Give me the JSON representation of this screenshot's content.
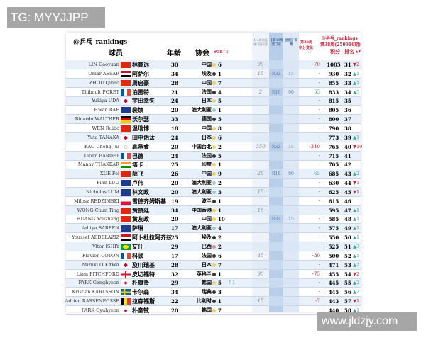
{
  "watermarks": {
    "top_left": "TG: MYYJJPP",
    "bottom_right": "www.jldzjy.com"
  },
  "header": {
    "brand": "@乒乓_rankings",
    "player": "球员",
    "age": "年龄",
    "assoc": "协会",
    "num": "#38↑↓",
    "col1": "【18周次回】澳门冠军赛",
    "col2": "【第38周 澳门冠",
    "col3": "战报】军赛",
    "col4_a": "第38周",
    "col4_b": "积分变化",
    "col4_c": "+/-",
    "right_brand": "@乒乓_rankings",
    "right_period": "第38周(250916期)",
    "points": "积分",
    "rank": "排名",
    "rank_arrows": "▲▼"
  },
  "colors": {
    "up": "#3aa58a",
    "down": "#c0283c",
    "band": "#b9cfe9"
  },
  "rows": [
    {
      "en": "LIN Gaoyuan",
      "flag": "cn",
      "cn": "林高远",
      "age": "30",
      "assoc": "中国",
      "dot": "#f0d060",
      "num": "6",
      "trend": "",
      "c1": "90",
      "c2": "",
      "c3": "",
      "change": "-70",
      "points": "1005",
      "rank": "31",
      "move": "▼2",
      "dir": "down"
    },
    {
      "en": "Omar ASSAR",
      "flag": "eg",
      "cn": "阿萨尔",
      "age": "34",
      "assoc": "埃及",
      "dot": "#333",
      "num": "1",
      "trend": "",
      "c1": "15",
      "c2": "R32",
      "c3": "15",
      "change": "-",
      "points": "930",
      "rank": "32",
      "move": "▲1",
      "dir": "up"
    },
    {
      "en": "ZHOU Qihao",
      "flag": "cn",
      "cn": "周启豪",
      "age": "28",
      "assoc": "中国",
      "dot": "#f0d060",
      "num": "7",
      "trend": "",
      "c1": "",
      "c2": "",
      "c3": "",
      "change": "-",
      "points": "855",
      "rank": "33",
      "move": "▲1",
      "dir": "up"
    },
    {
      "en": "Thibault PORET",
      "flag": "fr",
      "cn": "泊雷特",
      "age": "21",
      "assoc": "法国",
      "dot": "#333",
      "num": "4",
      "trend": "",
      "c1": "2",
      "c2": "R16",
      "c3": "90",
      "change": "55",
      "points": "833",
      "rank": "34",
      "move": "▲5",
      "dir": "up"
    },
    {
      "en": "Yukiya UDA",
      "flag": "jp",
      "cn": "宇田幸矢",
      "age": "24",
      "assoc": "日本",
      "dot": "#f0d060",
      "num": "5",
      "trend": "",
      "c1": "",
      "c2": "",
      "c3": "",
      "change": "-",
      "points": "815",
      "rank": "35",
      "move": "",
      "dir": ""
    },
    {
      "en": "Hwan BAE",
      "flag": "au",
      "cn": "裴焕",
      "age": "20",
      "assoc": "澳大利亚",
      "dot": "#9cc8d8",
      "num": "1",
      "trend": "",
      "c1": "",
      "c2": "",
      "c3": "",
      "change": "-",
      "points": "805",
      "rank": "36",
      "move": "",
      "dir": ""
    },
    {
      "en": "Ricardo WALTHER",
      "flag": "de",
      "cn": "沃尔瑟",
      "age": "33",
      "assoc": "德国",
      "dot": "#333",
      "num": "5",
      "trend": "",
      "c1": "",
      "c2": "",
      "c3": "",
      "change": "-",
      "points": "800",
      "rank": "37",
      "move": "",
      "dir": ""
    },
    {
      "en": "WEN Ruibo",
      "flag": "cn",
      "cn": "温瑞博",
      "age": "18",
      "assoc": "中国",
      "dot": "#f0d060",
      "num": "8",
      "trend": "",
      "c1": "",
      "c2": "",
      "c3": "",
      "change": "-",
      "points": "790",
      "rank": "38",
      "move": "",
      "dir": ""
    },
    {
      "en": "Yuta TANAKA",
      "flag": "jp",
      "cn": "田中佑汰",
      "age": "24",
      "assoc": "日本",
      "dot": "#f0d060",
      "num": "6",
      "trend": "",
      "c1": "",
      "c2": "",
      "c3": "",
      "change": "-",
      "points": "773",
      "rank": "39",
      "move": "▲1",
      "dir": "up"
    },
    {
      "en": "KAO Cheng-Jui",
      "flag": "tpe",
      "cn": "高承睿",
      "age": "20",
      "assoc": "中国台北",
      "dot": "#f0d060",
      "num": "2",
      "trend": "",
      "c1": "350",
      "c2": "R32",
      "c3": "15",
      "change": "-310",
      "points": "765",
      "rank": "40",
      "move": "▼10",
      "dir": "down"
    },
    {
      "en": "Lilian BARDET",
      "flag": "fr",
      "cn": "巴德",
      "age": "24",
      "assoc": "法国",
      "dot": "#333",
      "num": "5",
      "trend": "",
      "c1": "",
      "c2": "",
      "c3": "",
      "change": "-",
      "points": "715",
      "rank": "41",
      "move": "",
      "dir": ""
    },
    {
      "en": "Manav THAKKAR",
      "flag": "in",
      "cn": "塔卡",
      "age": "25",
      "assoc": "印度",
      "dot": "#f0d060",
      "num": "1",
      "trend": "",
      "c1": "",
      "c2": "",
      "c3": "",
      "change": "-",
      "points": "705",
      "rank": "42",
      "move": "",
      "dir": ""
    },
    {
      "en": "XUE Fei",
      "flag": "cn",
      "cn": "薛飞",
      "age": "26",
      "assoc": "中国",
      "dot": "#f0d060",
      "num": "9",
      "trend": "",
      "c1": "25",
      "c2": "R16",
      "c3": "90",
      "change": "65",
      "points": "685",
      "rank": "43",
      "move": "▲2",
      "dir": "up"
    },
    {
      "en": "Finn LUU",
      "flag": "au",
      "cn": "卢伟",
      "age": "20",
      "assoc": "澳大利亚",
      "dot": "#9cc8d8",
      "num": "2",
      "trend": "",
      "c1": "",
      "c2": "",
      "c3": "",
      "change": "-",
      "points": "630",
      "rank": "44",
      "move": "▼1",
      "dir": "down"
    },
    {
      "en": "Nicholas LUM",
      "flag": "au",
      "cn": "林文政",
      "age": "20",
      "assoc": "澳大利亚",
      "dot": "#9cc8d8",
      "num": "3",
      "trend": "",
      "c1": "15",
      "c2": "",
      "c3": "",
      "change": "-",
      "points": "625",
      "rank": "45",
      "move": "▼1",
      "dir": "down"
    },
    {
      "en": "Milosz REDZIMSKI",
      "flag": "pl",
      "cn": "雷德齐姆斯基",
      "age": "19",
      "assoc": "波兰",
      "dot": "#333",
      "num": "1",
      "trend": "",
      "c1": "",
      "c2": "",
      "c3": "",
      "change": "-",
      "points": "615",
      "rank": "46",
      "move": "",
      "dir": ""
    },
    {
      "en": "WONG Chun Ting",
      "flag": "hk",
      "cn": "黄镇廷",
      "age": "34",
      "assoc": "中国香港",
      "dot": "#f0d060",
      "num": "1",
      "trend": "",
      "c1": "15",
      "c2": "",
      "c3": "",
      "change": "-",
      "points": "595",
      "rank": "47",
      "move": "▲1",
      "dir": "up"
    },
    {
      "en": "HUANG Youzheng",
      "flag": "cn",
      "cn": "黄友政",
      "age": "20",
      "assoc": "中国",
      "dot": "#f0d060",
      "num": "10",
      "trend": "",
      "c1": "",
      "c2": "R32",
      "c3": "15",
      "change": "-",
      "points": "585",
      "rank": "48",
      "move": "▲1",
      "dir": "up"
    },
    {
      "en": "Aditya SAREEN",
      "flag": "au",
      "cn": "萨琳",
      "age": "17",
      "assoc": "澳大利亚",
      "dot": "#9cc8d8",
      "num": "4",
      "trend": "",
      "c1": "",
      "c2": "",
      "c3": "",
      "change": "-",
      "points": "575",
      "rank": "49",
      "move": "▲1",
      "dir": "up"
    },
    {
      "en": "Youssef ABDELAZIZ",
      "flag": "eg",
      "cn": "阿卜杜拉阿齐兹",
      "age": "25",
      "assoc": "埃及",
      "dot": "#333",
      "num": "2",
      "trend": "",
      "c1": "",
      "c2": "",
      "c3": "",
      "change": "-",
      "points": "550",
      "rank": "50",
      "move": "▲1",
      "dir": "up"
    },
    {
      "en": "Vitor ISHIY",
      "flag": "br",
      "cn": "艾什",
      "age": "29",
      "assoc": "巴西",
      "dot": "#e08a8a",
      "num": "2",
      "trend": "",
      "c1": "",
      "c2": "",
      "c3": "",
      "change": "-",
      "points": "525",
      "rank": "51",
      "move": "▲3",
      "dir": "up"
    },
    {
      "en": "Flavien COTON",
      "flag": "fr",
      "cn": "科顿",
      "age": "17",
      "assoc": "法国",
      "dot": "#333",
      "num": "6",
      "trend": "",
      "c1": "45",
      "c2": "",
      "c3": "",
      "change": "-30",
      "points": "500",
      "rank": "52",
      "move": "▲1",
      "dir": "up"
    },
    {
      "en": "Mizuki OIKAWA",
      "flag": "jp",
      "cn": "及川瑞基",
      "age": "28",
      "assoc": "日本",
      "dot": "#f0d060",
      "num": "7",
      "trend": "",
      "c1": "",
      "c2": "",
      "c3": "",
      "change": "-",
      "points": "471",
      "rank": "53",
      "move": "▲2",
      "dir": "up"
    },
    {
      "en": "Liam PITCHFORD",
      "flag": "en",
      "cn": "皮切福特",
      "age": "32",
      "assoc": "英格兰",
      "dot": "#333",
      "num": "1",
      "trend": "",
      "c1": "90",
      "c2": "",
      "c3": "",
      "change": "-75",
      "points": "455",
      "rank": "54",
      "move": "▼2",
      "dir": "down"
    },
    {
      "en": "PARK Ganghyeon",
      "flag": "kr",
      "cn": "朴康贤",
      "age": "29",
      "assoc": "韩国",
      "dot": "#f0d060",
      "num": "5",
      "trend": "↑1",
      "c1": "",
      "c2": "",
      "c3": "",
      "change": "-",
      "points": "445",
      "rank": "55",
      "move": "▲2",
      "dir": "up"
    },
    {
      "en": "Kristian KARLSSON",
      "flag": "se",
      "cn": "卡尔森",
      "age": "34",
      "assoc": "瑞典",
      "dot": "#333",
      "num": "3",
      "trend": "",
      "c1": "",
      "c2": "",
      "c3": "",
      "change": "-",
      "points": "445",
      "rank": "56",
      "move": "▲2",
      "dir": "up"
    },
    {
      "en": "Adrien RASSENFOSSE",
      "flag": "be",
      "cn": "拉森福斯",
      "age": "22",
      "assoc": "比利时",
      "dot": "#333",
      "num": "1",
      "trend": "",
      "c1": "15",
      "c2": "",
      "c3": "",
      "change": "-7",
      "points": "443",
      "rank": "57",
      "move": "▼1",
      "dir": "down"
    },
    {
      "en": "PARK Gyuhyeon",
      "flag": "kr",
      "cn": "朴奎铉",
      "age": "20",
      "assoc": "韩国",
      "dot": "#f0d060",
      "num": "7",
      "trend": "",
      "c1": "",
      "c2": "",
      "c3": "",
      "change": "-",
      "points": "440",
      "rank": "58",
      "move": "▲1",
      "dir": "up"
    }
  ]
}
